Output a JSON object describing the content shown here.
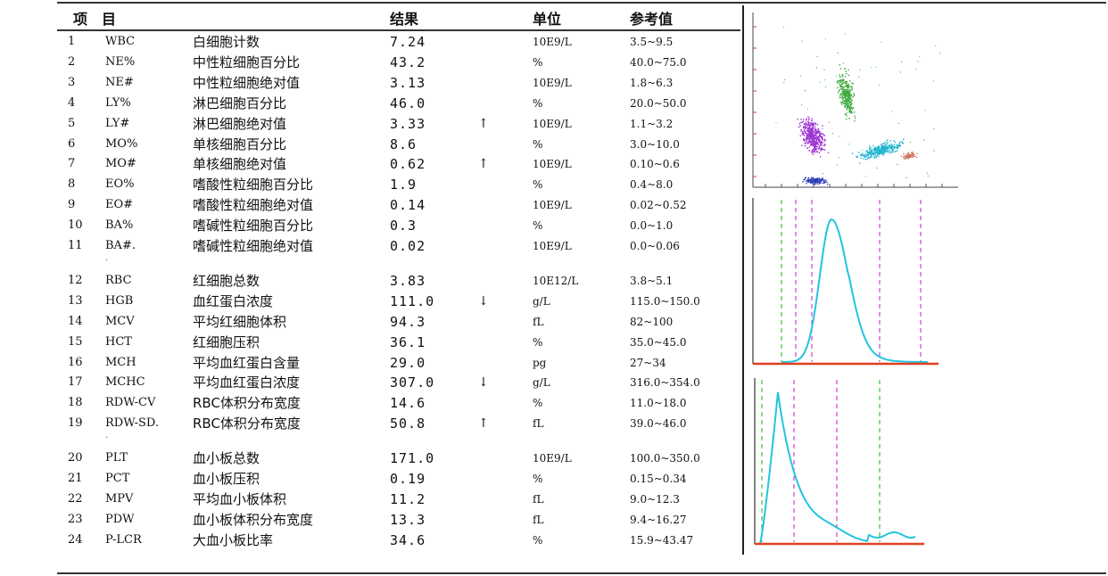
{
  "header": {
    "item": "项　目",
    "result": "结果",
    "unit": "单位",
    "reference": "参考值"
  },
  "groups": [
    {
      "rows": [
        {
          "no": "1",
          "code": "WBC",
          "name": "白细胞计数",
          "result": "7.24",
          "flag": "",
          "unit": "10E9/L",
          "ref": "3.5~9.5"
        },
        {
          "no": "2",
          "code": "NE%",
          "name": "中性粒细胞百分比",
          "result": "43.2",
          "flag": "",
          "unit": "%",
          "ref": "40.0~75.0"
        },
        {
          "no": "3",
          "code": "NE#",
          "name": "中性粒细胞绝对值",
          "result": "3.13",
          "flag": "",
          "unit": "10E9/L",
          "ref": "1.8~6.3"
        },
        {
          "no": "4",
          "code": "LY%",
          "name": "淋巴细胞百分比",
          "result": "46.0",
          "flag": "",
          "unit": "%",
          "ref": "20.0~50.0"
        },
        {
          "no": "5",
          "code": "LY#",
          "name": "淋巴细胞绝对值",
          "result": "3.33",
          "flag": "↑",
          "unit": "10E9/L",
          "ref": "1.1~3.2"
        },
        {
          "no": "6",
          "code": "MO%",
          "name": "单核细胞百分比",
          "result": "8.6",
          "flag": "",
          "unit": "%",
          "ref": "3.0~10.0"
        },
        {
          "no": "7",
          "code": "MO#",
          "name": "单核细胞绝对值",
          "result": "0.62",
          "flag": "↑",
          "unit": "10E9/L",
          "ref": "0.10~0.6"
        },
        {
          "no": "8",
          "code": "EO%",
          "name": "嗜酸性粒细胞百分比",
          "result": "1.9",
          "flag": "",
          "unit": "%",
          "ref": "0.4~8.0"
        },
        {
          "no": "9",
          "code": "EO#",
          "name": "嗜酸性粒细胞绝对值",
          "result": "0.14",
          "flag": "",
          "unit": "10E9/L",
          "ref": "0.02~0.52"
        },
        {
          "no": "10",
          "code": "BA%",
          "name": "嗜碱性粒细胞百分比",
          "result": "0.3",
          "flag": "",
          "unit": "%",
          "ref": "0.0~1.0"
        },
        {
          "no": "11",
          "code": "BA#.",
          "name": "嗜碱性粒细胞绝对值",
          "result": "0.02",
          "flag": "",
          "unit": "10E9/L",
          "ref": "0.0~0.06"
        }
      ]
    },
    {
      "rows": [
        {
          "no": "12",
          "code": "RBC",
          "name": "红细胞总数",
          "result": "3.83",
          "flag": "",
          "unit": "10E12/L",
          "ref": "3.8~5.1"
        },
        {
          "no": "13",
          "code": "HGB",
          "name": "血红蛋白浓度",
          "result": "111.0",
          "flag": "↓",
          "unit": "g/L",
          "ref": "115.0~150.0"
        },
        {
          "no": "14",
          "code": "MCV",
          "name": "平均红细胞体积",
          "result": "94.3",
          "flag": "",
          "unit": "fL",
          "ref": "82~100"
        },
        {
          "no": "15",
          "code": "HCT",
          "name": "红细胞压积",
          "result": "36.1",
          "flag": "",
          "unit": "%",
          "ref": "35.0~45.0"
        },
        {
          "no": "16",
          "code": "MCH",
          "name": "平均血红蛋白含量",
          "result": "29.0",
          "flag": "",
          "unit": "pg",
          "ref": "27~34"
        },
        {
          "no": "17",
          "code": "MCHC",
          "name": "平均血红蛋白浓度",
          "result": "307.0",
          "flag": "↓",
          "unit": "g/L",
          "ref": "316.0~354.0"
        },
        {
          "no": "18",
          "code": "RDW-CV",
          "name": "RBC体积分布宽度",
          "result": "14.6",
          "flag": "",
          "unit": "%",
          "ref": "11.0~18.0"
        },
        {
          "no": "19",
          "code": "RDW-SD.",
          "name": "RBC体积分布宽度",
          "result": "50.8",
          "flag": "↑",
          "unit": "fL",
          "ref": "39.0~46.0"
        }
      ]
    },
    {
      "rows": [
        {
          "no": "20",
          "code": "PLT",
          "name": "血小板总数",
          "result": "171.0",
          "flag": "",
          "unit": "10E9/L",
          "ref": "100.0~350.0"
        },
        {
          "no": "21",
          "code": "PCT",
          "name": "血小板压积",
          "result": "0.19",
          "flag": "",
          "unit": "%",
          "ref": "0.15~0.34"
        },
        {
          "no": "22",
          "code": "MPV",
          "name": "平均血小板体积",
          "result": "11.2",
          "flag": "",
          "unit": "fL",
          "ref": "9.0~12.3"
        },
        {
          "no": "23",
          "code": "PDW",
          "name": "血小板体积分布宽度",
          "result": "13.3",
          "flag": "",
          "unit": "fL",
          "ref": "9.4~16.27"
        },
        {
          "no": "24",
          "code": "P-LCR",
          "name": "大血小板比率",
          "result": "34.6",
          "flag": "",
          "unit": "%",
          "ref": "15.9~43.47"
        }
      ]
    }
  ],
  "colors": {
    "scatter_clusters": [
      "#9b30d0",
      "#3aa83a",
      "#1fb5d0",
      "#2a3ab0",
      "#d07060"
    ],
    "histogram_curve": "#22c4e0",
    "histogram_axis": "#e04020",
    "marker_green": "#40c040",
    "marker_magenta": "#d040d0"
  }
}
